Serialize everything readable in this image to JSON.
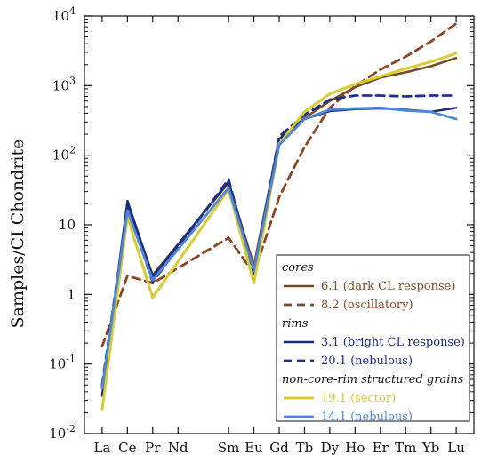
{
  "chart_data": {
    "type": "line",
    "title": "",
    "xlabel": "",
    "ylabel": "Samples/CI Chondrite",
    "y_scale": "log",
    "ylim": [
      0.01,
      10000
    ],
    "y_ticks": [
      {
        "value": 0.01,
        "base": "10",
        "exp": "-2"
      },
      {
        "value": 0.1,
        "base": "10",
        "exp": "-1"
      },
      {
        "value": 1,
        "base": "1",
        "exp": ""
      },
      {
        "value": 10,
        "base": "10",
        "exp": ""
      },
      {
        "value": 100,
        "base": "10",
        "exp": "2"
      },
      {
        "value": 1000,
        "base": "10",
        "exp": "3"
      },
      {
        "value": 10000,
        "base": "10",
        "exp": "4"
      }
    ],
    "grid": false,
    "legend_position": "bottom-right",
    "categories": [
      "La",
      "Ce",
      "Pr",
      "Nd",
      "Sm",
      "Eu",
      "Gd",
      "Tb",
      "Dy",
      "Ho",
      "Er",
      "Tm",
      "Yb",
      "Lu"
    ],
    "category_positions": [
      1,
      2,
      3,
      4,
      6,
      7,
      8,
      9,
      10,
      11,
      12,
      13,
      14,
      15
    ],
    "legend_groups": [
      {
        "label": "cores",
        "series": [
          0,
          1
        ]
      },
      {
        "label": "rims",
        "series": [
          2,
          3
        ]
      },
      {
        "label": "non-core-rim structured grains",
        "series": [
          4,
          5
        ]
      }
    ],
    "series": [
      {
        "name": "6.1 (dark CL response)",
        "color": "#7a4a24",
        "dash": "solid",
        "width": 2.5,
        "points": [
          [
            "Ce",
            20
          ],
          [
            "Pr",
            1.9
          ],
          [
            "Sm",
            40
          ],
          [
            "Eu",
            2.6
          ],
          [
            "Gd",
            170
          ],
          [
            "Tb",
            340
          ],
          [
            "Dy",
            600
          ],
          [
            "Ho",
            950
          ],
          [
            "Er",
            1300
          ],
          [
            "Tm",
            1550
          ],
          [
            "Yb",
            1900
          ],
          [
            "Lu",
            2500
          ]
        ]
      },
      {
        "name": "8.2 (oscillatory)",
        "color": "#8b4522",
        "dash": "dashed",
        "width": 2.8,
        "points": [
          [
            "La",
            0.18
          ],
          [
            "Ce",
            1.85
          ],
          [
            "Pr",
            1.45
          ],
          [
            "Sm",
            6.5
          ],
          [
            "Eu",
            2.0
          ],
          [
            "Gd",
            25
          ],
          [
            "Tb",
            130
          ],
          [
            "Dy",
            480
          ],
          [
            "Ho",
            980
          ],
          [
            "Er",
            1700
          ],
          [
            "Tm",
            2600
          ],
          [
            "Yb",
            4300
          ],
          [
            "Lu",
            7800
          ]
        ]
      },
      {
        "name": "3.1 (bright CL response)",
        "color": "#1a2a7a",
        "dash": "solid",
        "width": 2.5,
        "points": [
          [
            "La",
            0.035
          ],
          [
            "Ce",
            22
          ],
          [
            "Pr",
            1.8
          ],
          [
            "Sm",
            42
          ],
          [
            "Eu",
            2.2
          ],
          [
            "Gd",
            170
          ],
          [
            "Tb",
            330
          ],
          [
            "Dy",
            430
          ],
          [
            "Ho",
            460
          ],
          [
            "Er",
            470
          ],
          [
            "Tm",
            450
          ],
          [
            "Yb",
            420
          ],
          [
            "Lu",
            480
          ]
        ]
      },
      {
        "name": "20.1 (nebulous)",
        "color": "#232e86",
        "dash": "dashed",
        "width": 2.8,
        "points": [
          [
            "La",
            0.05
          ],
          [
            "Ce",
            18
          ],
          [
            "Pr",
            1.5
          ],
          [
            "Sm",
            45
          ],
          [
            "Eu",
            2.0
          ],
          [
            "Gd",
            185
          ],
          [
            "Tb",
            380
          ],
          [
            "Dy",
            630
          ],
          [
            "Ho",
            720
          ],
          [
            "Er",
            720
          ],
          [
            "Tm",
            700
          ],
          [
            "Yb",
            720
          ],
          [
            "Lu",
            720
          ]
        ]
      },
      {
        "name": "19.1 (sector)",
        "color": "#d8cc30",
        "dash": "solid",
        "width": 3,
        "points": [
          [
            "La",
            0.022
          ],
          [
            "Ce",
            13
          ],
          [
            "Pr",
            0.9
          ],
          [
            "Sm",
            32
          ],
          [
            "Eu",
            1.45
          ],
          [
            "Gd",
            145
          ],
          [
            "Tb",
            420
          ],
          [
            "Dy",
            760
          ],
          [
            "Ho",
            1050
          ],
          [
            "Er",
            1350
          ],
          [
            "Tm",
            1750
          ],
          [
            "Yb",
            2200
          ],
          [
            "Lu",
            2900
          ]
        ]
      },
      {
        "name": "14.1 (nebulous)",
        "color": "#4e86d8",
        "dash": "solid",
        "width": 2.8,
        "points": [
          [
            "La",
            0.045
          ],
          [
            "Ce",
            16
          ],
          [
            "Pr",
            1.6
          ],
          [
            "Sm",
            34
          ],
          [
            "Eu",
            2.2
          ],
          [
            "Gd",
            140
          ],
          [
            "Tb",
            330
          ],
          [
            "Dy",
            450
          ],
          [
            "Ho",
            470
          ],
          [
            "Er",
            480
          ],
          [
            "Tm",
            440
          ],
          [
            "Yb",
            420
          ],
          [
            "Lu",
            330
          ]
        ]
      }
    ]
  }
}
